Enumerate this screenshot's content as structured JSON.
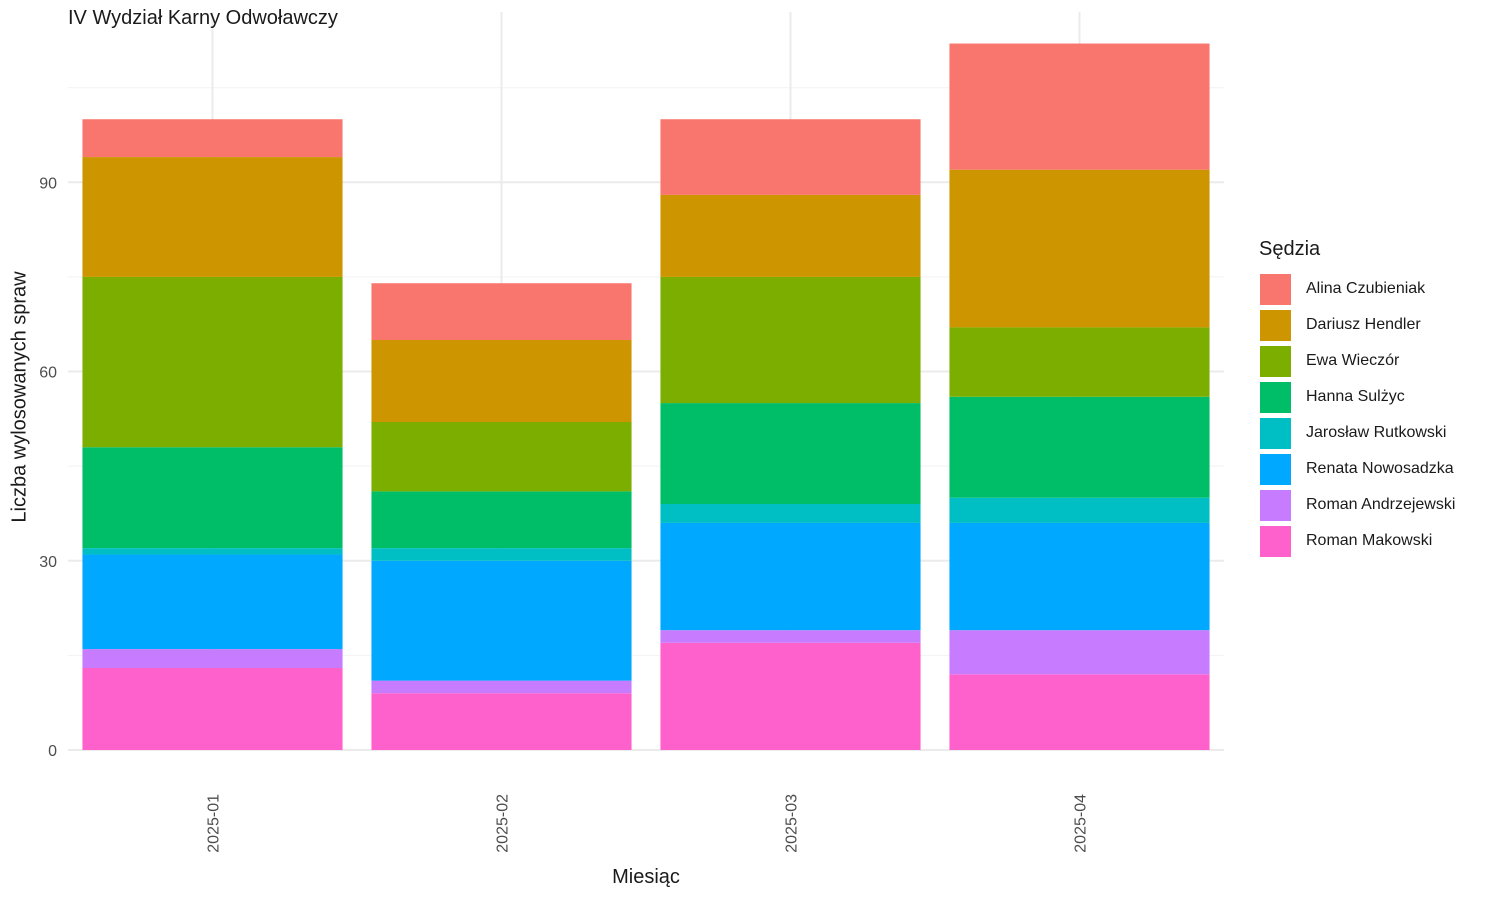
{
  "chart_data": {
    "type": "bar",
    "stacked": true,
    "title": "IV Wydział Karny Odwoławczy",
    "xlabel": "Miesiąc",
    "ylabel": "Liczba wylosowanych spraw",
    "ylim": [
      0,
      117
    ],
    "y_ticks": [
      "0",
      "30",
      "60",
      "90"
    ],
    "grid": true,
    "legend_title": "Sędzia",
    "legend_position": "right",
    "categories": [
      "2025-01",
      "2025-02",
      "2025-03",
      "2025-04"
    ],
    "series": [
      {
        "name": "Roman Makowski",
        "color": "#FF61CC",
        "values": [
          13,
          9,
          17,
          12
        ]
      },
      {
        "name": "Roman Andrzejewski",
        "color": "#C77CFF",
        "values": [
          3,
          2,
          2,
          7
        ]
      },
      {
        "name": "Renata Nowosadzka",
        "color": "#00A9FF",
        "values": [
          15,
          19,
          17,
          17
        ]
      },
      {
        "name": "Jarosław Rutkowski",
        "color": "#00BFC4",
        "values": [
          1,
          2,
          3,
          4
        ]
      },
      {
        "name": "Hanna Sulżyc",
        "color": "#00BE67",
        "values": [
          16,
          9,
          16,
          16
        ]
      },
      {
        "name": "Ewa Wieczór",
        "color": "#7CAE00",
        "values": [
          27,
          11,
          20,
          11
        ]
      },
      {
        "name": "Dariusz Hendler",
        "color": "#CD9600",
        "values": [
          19,
          13,
          13,
          25
        ]
      },
      {
        "name": "Alina Czubieniak",
        "color": "#F8766D",
        "values": [
          6,
          9,
          12,
          20
        ]
      }
    ],
    "legend_order": [
      "Alina Czubieniak",
      "Dariusz Hendler",
      "Ewa Wieczór",
      "Hanna Sulżyc",
      "Jarosław Rutkowski",
      "Renata Nowosadzka",
      "Roman Andrzejewski",
      "Roman Makowski"
    ]
  }
}
